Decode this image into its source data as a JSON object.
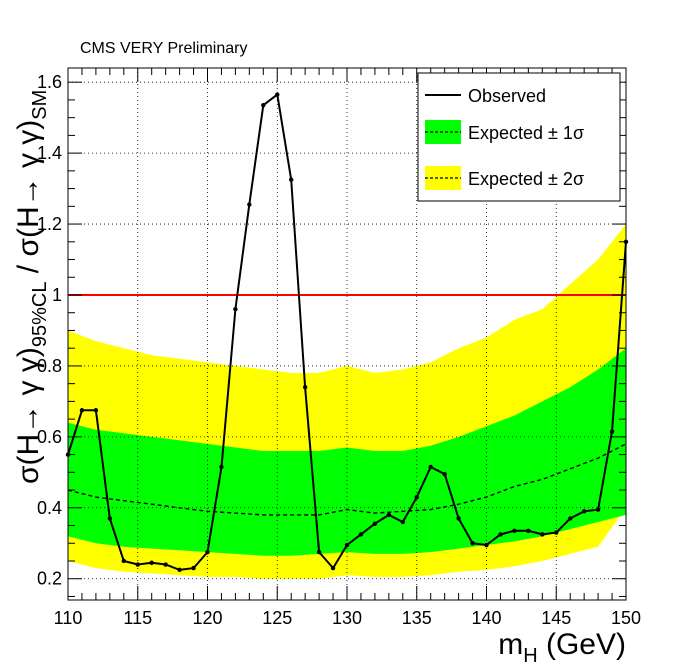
{
  "header": {
    "text": "CMS VERY Preliminary"
  },
  "chart_data": {
    "type": "line",
    "xlabel": {
      "main": "m",
      "sub": "H",
      "rest": " (GeV)"
    },
    "ylabel": {
      "part1": "σ(H→ γ γ)",
      "sub1": "95%CL",
      "part2": " / σ(H→ γ γ)",
      "sub2": "SM"
    },
    "xlim": [
      110,
      150
    ],
    "ylim": [
      0.14,
      1.64
    ],
    "xticks": [
      110,
      115,
      120,
      125,
      130,
      135,
      140,
      145,
      150
    ],
    "yticks": [
      0.2,
      0.4,
      0.6,
      0.8,
      1,
      1.2,
      1.4,
      1.6
    ],
    "ytick_labels": [
      "0.2",
      "0.4",
      "0.6",
      "0.8",
      "1",
      "1.2",
      "1.4",
      "1.6"
    ],
    "grid": true,
    "legend_position": "top-right",
    "legend": {
      "observed": "Observed",
      "expected1": "Expected ± 1σ",
      "expected2": "Expected ± 2σ"
    },
    "reference_line": {
      "y": 1.0,
      "color": "#ff0000"
    },
    "colors": {
      "observed": "#000000",
      "band1": "#00ff00",
      "band2": "#ffff00",
      "expected": "#000000"
    },
    "observed": {
      "x": [
        110,
        111,
        112,
        113,
        114,
        115,
        116,
        117,
        118,
        119,
        120,
        121,
        122,
        123,
        124,
        125,
        126,
        127,
        128,
        129,
        130,
        131,
        132,
        133,
        134,
        135,
        136,
        137,
        138,
        139,
        140,
        141,
        142,
        143,
        144,
        145,
        146,
        147,
        148,
        149,
        150
      ],
      "y": [
        0.55,
        0.675,
        0.675,
        0.37,
        0.25,
        0.24,
        0.245,
        0.24,
        0.225,
        0.23,
        0.275,
        0.515,
        0.96,
        1.255,
        1.535,
        1.565,
        1.325,
        0.74,
        0.275,
        0.23,
        0.295,
        0.325,
        0.355,
        0.38,
        0.36,
        0.43,
        0.515,
        0.495,
        0.37,
        0.3,
        0.295,
        0.325,
        0.335,
        0.335,
        0.325,
        0.33,
        0.37,
        0.39,
        0.395,
        0.615,
        1.15
      ]
    },
    "expected": {
      "x": [
        110,
        112,
        114,
        116,
        118,
        120,
        122,
        124,
        126,
        128,
        130,
        132,
        134,
        136,
        138,
        140,
        142,
        144,
        146,
        148,
        150
      ],
      "median": [
        0.45,
        0.43,
        0.42,
        0.41,
        0.4,
        0.39,
        0.385,
        0.38,
        0.38,
        0.38,
        0.395,
        0.385,
        0.39,
        0.395,
        0.41,
        0.43,
        0.46,
        0.48,
        0.51,
        0.54,
        0.58
      ],
      "minus1": [
        0.32,
        0.3,
        0.29,
        0.285,
        0.28,
        0.275,
        0.27,
        0.265,
        0.265,
        0.27,
        0.275,
        0.27,
        0.27,
        0.275,
        0.285,
        0.295,
        0.305,
        0.32,
        0.34,
        0.36,
        0.38
      ],
      "plus1": [
        0.64,
        0.62,
        0.61,
        0.6,
        0.59,
        0.58,
        0.57,
        0.56,
        0.56,
        0.56,
        0.57,
        0.56,
        0.56,
        0.575,
        0.6,
        0.63,
        0.66,
        0.7,
        0.74,
        0.79,
        0.85
      ],
      "minus2": [
        0.25,
        0.23,
        0.22,
        0.215,
        0.21,
        0.205,
        0.205,
        0.2,
        0.2,
        0.2,
        0.21,
        0.205,
        0.205,
        0.21,
        0.22,
        0.225,
        0.235,
        0.25,
        0.27,
        0.29,
        0.4
      ],
      "plus2": [
        0.9,
        0.87,
        0.85,
        0.83,
        0.82,
        0.81,
        0.8,
        0.79,
        0.78,
        0.78,
        0.8,
        0.78,
        0.79,
        0.81,
        0.85,
        0.88,
        0.93,
        0.96,
        1.03,
        1.1,
        1.2
      ]
    }
  }
}
